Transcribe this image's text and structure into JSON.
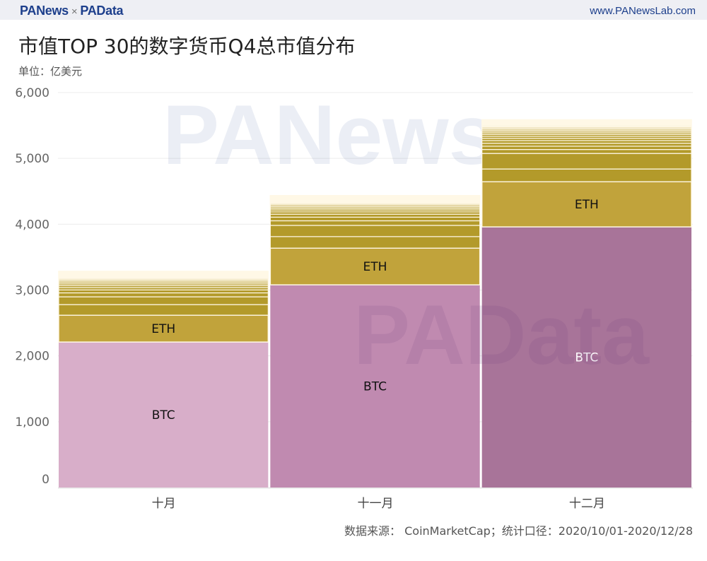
{
  "header": {
    "brand_left": "PANews",
    "brand_sep": "×",
    "brand_right": "PAData",
    "site": "www.PANewsLab.com"
  },
  "watermarks": [
    "PANews",
    "PAData"
  ],
  "chart_data": {
    "type": "bar",
    "stacked": true,
    "title": "市值TOP 30的数字货币Q4总市值分布",
    "subtitle": "单位：亿美元",
    "categories": [
      "十月",
      "十一月",
      "十二月"
    ],
    "ylim": [
      0,
      6000
    ],
    "yticks": [
      0,
      1000,
      2000,
      3000,
      4000,
      5000,
      6000
    ],
    "ytick_labels": [
      "0",
      "1,000",
      "2,000",
      "3,000",
      "4,000",
      "5,000",
      "6,000"
    ],
    "grid": true,
    "series": [
      {
        "name": "BTC",
        "values": [
          2210,
          3079,
          3959
        ],
        "colors": [
          "#d8aec9",
          "#c08ab0",
          "#a87499"
        ],
        "label_color": [
          "#111",
          "#111",
          "#fff"
        ]
      },
      {
        "name": "ETH",
        "values": [
          408,
          558,
          687
        ],
        "color": "#c1a33b"
      }
    ],
    "other_coins": {
      "color": "#b39a2a",
      "values": [
        [
          161,
          118,
          60,
          45,
          35,
          30,
          25,
          22,
          20,
          18,
          15,
          14,
          12,
          11,
          10,
          9,
          8,
          8,
          7,
          7,
          6,
          6,
          5,
          4,
          4,
          3,
          3,
          3
        ],
        [
          175,
          170,
          70,
          55,
          45,
          35,
          30,
          26,
          22,
          20,
          18,
          15,
          13,
          12,
          11,
          10,
          9,
          8,
          8,
          7,
          7,
          6,
          6,
          5,
          5,
          4,
          4,
          4
        ],
        [
          193,
          236,
          60,
          50,
          45,
          40,
          35,
          30,
          28,
          25,
          22,
          20,
          18,
          16,
          15,
          14,
          13,
          12,
          11,
          10,
          9,
          8,
          8,
          7,
          6,
          5,
          4,
          3
        ]
      ]
    },
    "source": "数据来源： CoinMarketCap；统计口径：2020/10/01-2020/12/28"
  }
}
